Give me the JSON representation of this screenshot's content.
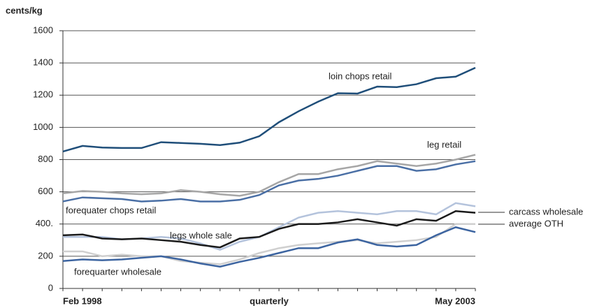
{
  "chart_data": {
    "type": "line",
    "y_label": "cents/kg",
    "x_label": "quarterly",
    "categories": [
      "Feb 1998",
      null,
      null,
      null,
      null,
      null,
      null,
      null,
      null,
      null,
      null,
      null,
      null,
      null,
      null,
      null,
      null,
      null,
      null,
      null,
      null,
      "May 2003"
    ],
    "ylim": [
      0,
      1600
    ],
    "yticks": [
      0,
      200,
      {
        "value": 400,
        "label": "400."
      },
      600,
      800,
      1000,
      1200,
      1400,
      1600
    ],
    "grid": true,
    "series": [
      {
        "name": "loin chops retail",
        "color": "#1f4e79",
        "values": [
          850,
          885,
          875,
          872,
          872,
          908,
          903,
          898,
          890,
          905,
          945,
          1032,
          1100,
          1160,
          1212,
          1210,
          1253,
          1250,
          1268,
          1305,
          1315,
          1370
        ]
      },
      {
        "name": "leg retail",
        "color": "#a6a6a6",
        "values": [
          590,
          605,
          600,
          590,
          585,
          590,
          610,
          600,
          585,
          575,
          600,
          660,
          710,
          710,
          740,
          760,
          790,
          775,
          760,
          775,
          800,
          830
        ]
      },
      {
        "name": "forequater chops retail",
        "color": "#4a6fa5",
        "values": [
          540,
          565,
          560,
          555,
          540,
          545,
          555,
          540,
          540,
          550,
          580,
          640,
          670,
          680,
          700,
          730,
          760,
          760,
          730,
          740,
          770,
          790
        ]
      },
      {
        "name": "legs whole sale",
        "color": "#b4c3dc",
        "values": [
          320,
          320,
          320,
          305,
          310,
          320,
          310,
          280,
          240,
          290,
          320,
          380,
          440,
          470,
          480,
          470,
          460,
          480,
          480,
          460,
          530,
          510
        ]
      },
      {
        "name": "carcass wholesale",
        "color": "#1a1a1a",
        "values": [
          330,
          335,
          310,
          305,
          310,
          300,
          290,
          270,
          255,
          310,
          320,
          370,
          400,
          400,
          410,
          430,
          410,
          390,
          430,
          420,
          480,
          470
        ]
      },
      {
        "name": "average OTH",
        "color": "#cfcfcf",
        "values": [
          230,
          230,
          200,
          210,
          200,
          200,
          170,
          160,
          150,
          180,
          220,
          250,
          270,
          280,
          290,
          300,
          280,
          290,
          300,
          320,
          400,
          400
        ]
      },
      {
        "name": "forequarter wholesale",
        "color": "#3c64a0",
        "values": [
          170,
          180,
          175,
          180,
          190,
          200,
          180,
          155,
          135,
          165,
          190,
          220,
          250,
          250,
          285,
          305,
          270,
          260,
          270,
          330,
          380,
          350
        ]
      }
    ]
  }
}
